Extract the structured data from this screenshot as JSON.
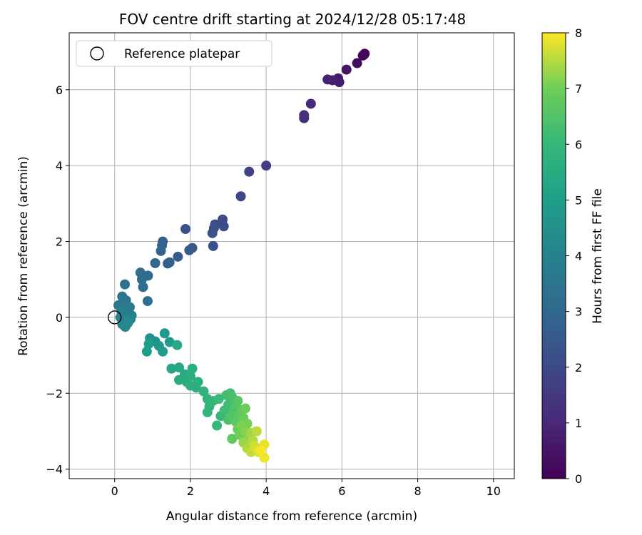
{
  "chart_data": {
    "type": "scatter",
    "title": "FOV centre drift starting at 2024/12/28 05:17:48",
    "xlabel": "Angular distance from reference (arcmin)",
    "ylabel": "Rotation from reference (arcmin)",
    "xlim": [
      -1.2,
      10.55
    ],
    "ylim": [
      -4.25,
      7.5
    ],
    "xticks": [
      "0",
      "2",
      "4",
      "6",
      "8",
      "10"
    ],
    "yticks": [
      "−4",
      "−2",
      "0",
      "2",
      "4",
      "6"
    ],
    "grid": true,
    "legend": {
      "position": "top-left",
      "entries": [
        "Reference platepar"
      ]
    },
    "reference_point": {
      "x": 0,
      "y": 0
    },
    "colorbar": {
      "label": "Hours from first FF file",
      "range": [
        0,
        8
      ],
      "ticks": [
        "0",
        "1",
        "2",
        "3",
        "4",
        "5",
        "6",
        "7",
        "8"
      ],
      "colormap": "viridis"
    },
    "points": [
      {
        "x": 6.6,
        "y": 6.95,
        "c": 0.05
      },
      {
        "x": 6.58,
        "y": 6.92,
        "c": 0.1
      },
      {
        "x": 6.55,
        "y": 6.9,
        "c": 0.15
      },
      {
        "x": 6.4,
        "y": 6.7,
        "c": 0.3
      },
      {
        "x": 6.12,
        "y": 6.53,
        "c": 0.5
      },
      {
        "x": 5.9,
        "y": 6.3,
        "c": 0.65
      },
      {
        "x": 5.93,
        "y": 6.2,
        "c": 0.7
      },
      {
        "x": 5.75,
        "y": 6.25,
        "c": 0.75
      },
      {
        "x": 5.62,
        "y": 6.27,
        "c": 0.85
      },
      {
        "x": 5.18,
        "y": 5.63,
        "c": 1.1
      },
      {
        "x": 5.0,
        "y": 5.33,
        "c": 1.2
      },
      {
        "x": 5.0,
        "y": 5.25,
        "c": 1.25
      },
      {
        "x": 4.0,
        "y": 4.0,
        "c": 1.6
      },
      {
        "x": 3.55,
        "y": 3.84,
        "c": 1.75
      },
      {
        "x": 3.33,
        "y": 3.19,
        "c": 1.9
      },
      {
        "x": 2.85,
        "y": 2.58,
        "c": 2.05
      },
      {
        "x": 2.88,
        "y": 2.4,
        "c": 2.1
      },
      {
        "x": 2.65,
        "y": 2.45,
        "c": 2.15
      },
      {
        "x": 2.62,
        "y": 2.35,
        "c": 2.2
      },
      {
        "x": 2.58,
        "y": 2.22,
        "c": 2.25
      },
      {
        "x": 2.6,
        "y": 1.88,
        "c": 2.3
      },
      {
        "x": 1.87,
        "y": 2.33,
        "c": 2.35
      },
      {
        "x": 2.05,
        "y": 1.83,
        "c": 2.45
      },
      {
        "x": 1.97,
        "y": 1.77,
        "c": 2.5
      },
      {
        "x": 1.67,
        "y": 1.6,
        "c": 2.6
      },
      {
        "x": 1.45,
        "y": 1.45,
        "c": 2.7
      },
      {
        "x": 1.4,
        "y": 1.42,
        "c": 2.75
      },
      {
        "x": 1.27,
        "y": 2.0,
        "c": 2.8
      },
      {
        "x": 1.25,
        "y": 1.9,
        "c": 2.85
      },
      {
        "x": 1.22,
        "y": 1.75,
        "c": 2.9
      },
      {
        "x": 1.07,
        "y": 1.43,
        "c": 3.0
      },
      {
        "x": 0.88,
        "y": 1.1,
        "c": 3.1
      },
      {
        "x": 0.68,
        "y": 1.18,
        "c": 3.15
      },
      {
        "x": 0.72,
        "y": 1.0,
        "c": 3.2
      },
      {
        "x": 0.75,
        "y": 0.8,
        "c": 3.25
      },
      {
        "x": 0.87,
        "y": 0.43,
        "c": 3.35
      },
      {
        "x": 0.27,
        "y": 0.87,
        "c": 3.4
      },
      {
        "x": 0.2,
        "y": 0.55,
        "c": 3.5
      },
      {
        "x": 0.3,
        "y": 0.45,
        "c": 3.55
      },
      {
        "x": 0.1,
        "y": 0.32,
        "c": 3.6
      },
      {
        "x": 0.25,
        "y": 0.25,
        "c": 3.7
      },
      {
        "x": 0.4,
        "y": 0.27,
        "c": 3.75
      },
      {
        "x": 0.18,
        "y": 0.15,
        "c": 3.8
      },
      {
        "x": 0.35,
        "y": 0.1,
        "c": 3.85
      },
      {
        "x": 0.45,
        "y": 0.05,
        "c": 3.9
      },
      {
        "x": 0.15,
        "y": 0.0,
        "c": 3.95
      },
      {
        "x": 0.3,
        "y": -0.02,
        "c": 4.0
      },
      {
        "x": 0.25,
        "y": -0.1,
        "c": 4.05
      },
      {
        "x": 0.42,
        "y": -0.05,
        "c": 4.1
      },
      {
        "x": 0.2,
        "y": -0.18,
        "c": 4.15
      },
      {
        "x": 0.28,
        "y": -0.25,
        "c": 4.2
      },
      {
        "x": 0.35,
        "y": -0.15,
        "c": 4.25
      },
      {
        "x": 0.93,
        "y": -0.55,
        "c": 4.5
      },
      {
        "x": 1.07,
        "y": -0.63,
        "c": 4.6
      },
      {
        "x": 1.17,
        "y": -0.75,
        "c": 4.7
      },
      {
        "x": 1.32,
        "y": -0.42,
        "c": 4.8
      },
      {
        "x": 1.45,
        "y": -0.65,
        "c": 4.9
      },
      {
        "x": 1.27,
        "y": -0.9,
        "c": 4.95
      },
      {
        "x": 0.85,
        "y": -0.9,
        "c": 5.0
      },
      {
        "x": 0.9,
        "y": -0.7,
        "c": 5.05
      },
      {
        "x": 1.5,
        "y": -1.35,
        "c": 5.3
      },
      {
        "x": 1.7,
        "y": -1.32,
        "c": 5.35
      },
      {
        "x": 1.65,
        "y": -0.73,
        "c": 5.4
      },
      {
        "x": 1.85,
        "y": -1.5,
        "c": 5.45
      },
      {
        "x": 1.7,
        "y": -1.65,
        "c": 5.5
      },
      {
        "x": 1.9,
        "y": -1.7,
        "c": 5.55
      },
      {
        "x": 2.0,
        "y": -1.55,
        "c": 5.6
      },
      {
        "x": 2.05,
        "y": -1.35,
        "c": 5.62
      },
      {
        "x": 2.15,
        "y": -1.85,
        "c": 5.65
      },
      {
        "x": 2.0,
        "y": -1.8,
        "c": 5.68
      },
      {
        "x": 2.2,
        "y": -1.7,
        "c": 5.7
      },
      {
        "x": 2.35,
        "y": -1.95,
        "c": 5.75
      },
      {
        "x": 2.45,
        "y": -2.15,
        "c": 5.8
      },
      {
        "x": 2.5,
        "y": -2.35,
        "c": 5.85
      },
      {
        "x": 2.45,
        "y": -2.5,
        "c": 5.9
      },
      {
        "x": 2.6,
        "y": -2.2,
        "c": 5.95
      },
      {
        "x": 2.7,
        "y": -2.85,
        "c": 6.0
      },
      {
        "x": 2.8,
        "y": -2.6,
        "c": 6.05
      },
      {
        "x": 2.75,
        "y": -2.15,
        "c": 6.1
      },
      {
        "x": 2.9,
        "y": -2.45,
        "c": 6.15
      },
      {
        "x": 3.0,
        "y": -2.3,
        "c": 6.2
      },
      {
        "x": 2.95,
        "y": -2.05,
        "c": 6.25
      },
      {
        "x": 3.05,
        "y": -2.0,
        "c": 6.3
      },
      {
        "x": 3.1,
        "y": -2.1,
        "c": 6.35
      },
      {
        "x": 3.0,
        "y": -2.7,
        "c": 6.4
      },
      {
        "x": 3.15,
        "y": -2.45,
        "c": 6.45
      },
      {
        "x": 3.2,
        "y": -2.3,
        "c": 6.5
      },
      {
        "x": 3.1,
        "y": -2.6,
        "c": 6.55
      },
      {
        "x": 3.25,
        "y": -2.2,
        "c": 6.6
      },
      {
        "x": 3.3,
        "y": -2.55,
        "c": 6.65
      },
      {
        "x": 3.2,
        "y": -2.75,
        "c": 6.7
      },
      {
        "x": 3.1,
        "y": -3.2,
        "c": 6.75
      },
      {
        "x": 3.35,
        "y": -2.45,
        "c": 6.8
      },
      {
        "x": 3.4,
        "y": -2.65,
        "c": 6.85
      },
      {
        "x": 3.25,
        "y": -2.95,
        "c": 6.9
      },
      {
        "x": 3.45,
        "y": -2.4,
        "c": 6.95
      },
      {
        "x": 3.3,
        "y": -3.1,
        "c": 7.0
      },
      {
        "x": 3.5,
        "y": -2.8,
        "c": 7.05
      },
      {
        "x": 3.35,
        "y": -2.85,
        "c": 7.1
      },
      {
        "x": 3.45,
        "y": -3.0,
        "c": 7.15
      },
      {
        "x": 3.55,
        "y": -3.15,
        "c": 7.2
      },
      {
        "x": 3.4,
        "y": -3.3,
        "c": 7.3
      },
      {
        "x": 3.6,
        "y": -3.05,
        "c": 7.35
      },
      {
        "x": 3.5,
        "y": -3.45,
        "c": 7.45
      },
      {
        "x": 3.65,
        "y": -3.25,
        "c": 7.5
      },
      {
        "x": 3.75,
        "y": -3.0,
        "c": 7.55
      },
      {
        "x": 3.6,
        "y": -3.55,
        "c": 7.6
      },
      {
        "x": 3.7,
        "y": -3.4,
        "c": 7.7
      },
      {
        "x": 3.8,
        "y": -3.55,
        "c": 7.75
      },
      {
        "x": 3.95,
        "y": -3.35,
        "c": 7.85
      },
      {
        "x": 3.95,
        "y": -3.7,
        "c": 7.9
      },
      {
        "x": 3.85,
        "y": -3.5,
        "c": 7.95
      }
    ]
  }
}
